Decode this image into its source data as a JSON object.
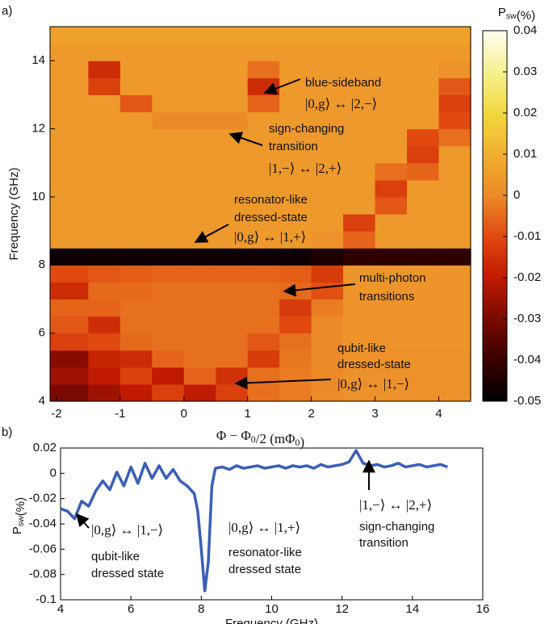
{
  "chart_data": [
    {
      "type": "heatmap",
      "panel_label": "a)",
      "xlabel": "Φ − Φ0/2 (mΦ0)",
      "ylabel": "Frequency (GHz)",
      "colorbar_label": "Psw(%)",
      "xlim": [
        -2.1,
        4.5
      ],
      "ylim": [
        4,
        15
      ],
      "xticks": [
        -2,
        -1,
        0,
        1,
        2,
        3,
        4
      ],
      "yticks": [
        4,
        6,
        8,
        10,
        12,
        14
      ],
      "zlim": [
        -0.05,
        0.04
      ],
      "zticks": [
        0.04,
        0.03,
        0.02,
        0.01,
        0,
        -0.01,
        -0.02,
        -0.03,
        -0.04,
        -0.05
      ],
      "colormap": [
        "#000000",
        "#3a0000",
        "#7a0a00",
        "#c01a00",
        "#e04a10",
        "#ec8a28",
        "#f0b030",
        "#f2d840",
        "#f6f090",
        "#fffff0"
      ],
      "x": [
        -1.75,
        -1.25,
        -0.75,
        -0.25,
        0.25,
        0.75,
        1.25,
        1.75,
        2.25,
        2.75,
        3.25,
        3.75,
        4.25
      ],
      "y": [
        4.25,
        4.75,
        5.25,
        5.75,
        6.25,
        6.75,
        7.25,
        7.75,
        8.25,
        8.75,
        9.25,
        9.75,
        10.25,
        10.75,
        11.25,
        11.75,
        12.25,
        12.75,
        13.25,
        13.75,
        14.25,
        14.75
      ],
      "z": [
        [
          -0.03,
          -0.025,
          -0.02,
          -0.012,
          -0.02,
          -0.012,
          -0.004,
          -0.002,
          0.0,
          0.002,
          0.002,
          0.002,
          0.002
        ],
        [
          -0.025,
          -0.02,
          -0.012,
          -0.02,
          -0.006,
          -0.015,
          -0.004,
          -0.002,
          0.0,
          0.002,
          0.002,
          0.002,
          0.002
        ],
        [
          -0.028,
          -0.018,
          -0.016,
          -0.006,
          -0.004,
          -0.004,
          -0.013,
          -0.003,
          0.0,
          0.002,
          0.002,
          0.002,
          0.002
        ],
        [
          -0.012,
          -0.01,
          -0.005,
          -0.004,
          -0.004,
          -0.004,
          -0.008,
          -0.004,
          0.0,
          0.003,
          0.003,
          0.003,
          0.003
        ],
        [
          -0.008,
          -0.016,
          -0.004,
          -0.004,
          -0.004,
          -0.004,
          -0.004,
          -0.01,
          0.0,
          0.003,
          0.003,
          0.003,
          0.003
        ],
        [
          -0.006,
          -0.006,
          -0.004,
          -0.004,
          -0.004,
          -0.004,
          -0.004,
          -0.013,
          -0.002,
          0.003,
          0.003,
          0.003,
          0.003
        ],
        [
          -0.016,
          -0.005,
          -0.005,
          -0.004,
          -0.004,
          -0.004,
          -0.004,
          -0.005,
          -0.009,
          0.003,
          0.003,
          0.003,
          0.003
        ],
        [
          -0.01,
          -0.008,
          -0.007,
          -0.006,
          -0.006,
          -0.006,
          -0.006,
          -0.007,
          -0.013,
          0.003,
          0.003,
          0.003,
          0.003
        ],
        [
          -0.048,
          -0.048,
          -0.048,
          -0.048,
          -0.048,
          -0.048,
          -0.048,
          -0.048,
          -0.045,
          -0.042,
          -0.042,
          -0.042,
          -0.042
        ],
        [
          0.004,
          0.004,
          0.004,
          0.004,
          0.004,
          0.004,
          0.004,
          0.004,
          0.002,
          -0.006,
          0.004,
          0.004,
          0.004
        ],
        [
          0.004,
          0.004,
          0.004,
          0.004,
          0.004,
          0.004,
          0.004,
          0.004,
          0.004,
          -0.012,
          0.004,
          0.004,
          0.004
        ],
        [
          0.004,
          0.004,
          0.004,
          0.004,
          0.004,
          0.004,
          0.004,
          0.004,
          0.004,
          0.004,
          -0.008,
          0.004,
          0.004
        ],
        [
          0.004,
          0.004,
          0.004,
          0.004,
          0.004,
          0.004,
          0.004,
          0.004,
          0.004,
          0.004,
          -0.012,
          0.004,
          0.004
        ],
        [
          0.004,
          0.004,
          0.004,
          0.004,
          0.004,
          0.004,
          0.004,
          0.004,
          0.004,
          0.004,
          -0.004,
          -0.006,
          0.004
        ],
        [
          0.004,
          0.004,
          0.004,
          0.004,
          0.004,
          0.004,
          0.004,
          0.004,
          0.004,
          0.004,
          0.004,
          -0.012,
          0.004
        ],
        [
          0.004,
          0.004,
          0.004,
          0.004,
          0.004,
          0.004,
          0.004,
          0.004,
          0.004,
          0.004,
          0.004,
          -0.01,
          -0.004
        ],
        [
          0.004,
          0.004,
          0.004,
          0.0,
          0.0,
          0.0,
          0.004,
          0.004,
          0.004,
          0.004,
          0.004,
          0.004,
          -0.01
        ],
        [
          0.004,
          0.004,
          -0.008,
          0.004,
          0.004,
          0.004,
          -0.006,
          0.004,
          0.004,
          0.004,
          0.004,
          0.004,
          -0.012
        ],
        [
          0.004,
          -0.012,
          0.004,
          0.004,
          0.004,
          0.004,
          -0.016,
          0.004,
          0.004,
          0.004,
          0.004,
          0.004,
          -0.008
        ],
        [
          0.004,
          -0.016,
          0.004,
          0.004,
          0.004,
          0.004,
          -0.004,
          0.004,
          0.004,
          0.004,
          0.004,
          0.004,
          0.002
        ],
        [
          0.004,
          0.004,
          0.004,
          0.004,
          0.004,
          0.004,
          0.004,
          0.004,
          0.004,
          0.004,
          0.004,
          0.004,
          0.004
        ],
        [
          0.006,
          0.006,
          0.006,
          0.006,
          0.006,
          0.006,
          0.006,
          0.006,
          0.006,
          0.006,
          0.006,
          0.006,
          0.006
        ]
      ],
      "annotations": [
        [
          "blue-sideband",
          "|0,g⟩ ↔ |2,−⟩"
        ],
        [
          "sign-changing",
          "transition",
          "|1,−⟩ ↔ |2,+⟩"
        ],
        [
          "resonator-like",
          "dressed-state",
          "|0,g⟩ ↔ |1,+⟩"
        ],
        [
          "multi-photon",
          "transitions"
        ],
        [
          "qubit-like",
          "dressed-state",
          "|0,g⟩ ↔ |1,−⟩"
        ]
      ]
    },
    {
      "type": "line",
      "panel_label": "b)",
      "xlabel": "Frequency (GHz)",
      "ylabel": "Psw(%)",
      "xlim": [
        4,
        16
      ],
      "ylim": [
        -0.1,
        0.02
      ],
      "xticks": [
        4,
        6,
        8,
        10,
        12,
        14,
        16
      ],
      "yticks": [
        -0.1,
        -0.08,
        -0.06,
        -0.04,
        -0.02,
        0,
        0.02
      ],
      "x": [
        4.0,
        4.2,
        4.4,
        4.6,
        4.8,
        5.0,
        5.2,
        5.4,
        5.6,
        5.8,
        6.0,
        6.2,
        6.4,
        6.6,
        6.8,
        7.0,
        7.2,
        7.4,
        7.6,
        7.8,
        7.9,
        8.0,
        8.1,
        8.2,
        8.3,
        8.4,
        8.6,
        8.8,
        9.0,
        9.2,
        9.4,
        9.6,
        9.8,
        10.0,
        10.2,
        10.4,
        10.6,
        10.8,
        11.0,
        11.2,
        11.4,
        11.6,
        11.8,
        12.0,
        12.2,
        12.4,
        12.6,
        12.8,
        13.0,
        13.2,
        13.4,
        13.6,
        13.8,
        14.0,
        14.2,
        14.4,
        14.6,
        14.8,
        15.0
      ],
      "series": [
        {
          "color": "#3a5fb8",
          "values": [
            -0.028,
            -0.03,
            -0.036,
            -0.022,
            -0.026,
            -0.014,
            -0.006,
            -0.013,
            0.001,
            -0.01,
            0.005,
            -0.008,
            0.008,
            -0.004,
            0.006,
            -0.004,
            0.003,
            -0.006,
            -0.01,
            -0.016,
            -0.03,
            -0.06,
            -0.093,
            -0.07,
            -0.01,
            0.004,
            0.005,
            0.003,
            0.006,
            0.004,
            0.005,
            0.006,
            0.004,
            0.005,
            0.006,
            0.004,
            0.006,
            0.005,
            0.006,
            0.004,
            0.007,
            0.005,
            0.006,
            0.007,
            0.009,
            0.018,
            0.008,
            0.006,
            0.007,
            0.005,
            0.006,
            0.008,
            0.005,
            0.006,
            0.007,
            0.005,
            0.006,
            0.007,
            0.005
          ]
        }
      ],
      "annotations": [
        [
          "|0,g⟩ ↔ |1,−⟩",
          "qubit-like",
          "dressed state"
        ],
        [
          "|0,g⟩ ↔ |1,+⟩",
          "resonator-like",
          "dressed state"
        ],
        [
          "|1,−⟩ ↔ |2,+⟩",
          "sign-changing",
          "transition"
        ]
      ]
    }
  ]
}
